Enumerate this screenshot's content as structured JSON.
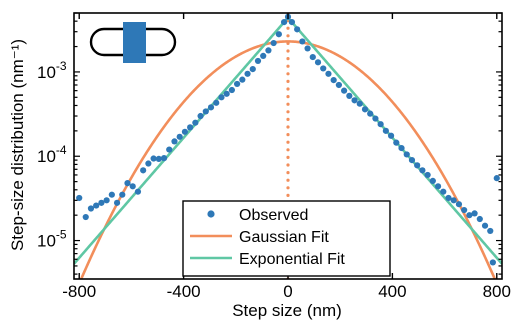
{
  "colors": {
    "observed": "#2e78b7",
    "gaussian": "#f28e5b",
    "exponential": "#5fc7a4",
    "axis": "#000000"
  },
  "chart_data": {
    "type": "scatter",
    "title": "",
    "xlabel": "Step size (nm)",
    "ylabel": "Step-size distribution (nm⁻¹)",
    "xlim": [
      -820,
      820
    ],
    "ylim": [
      3.5e-06,
      0.005
    ],
    "yscale": "log",
    "grid": false,
    "legend_position": "bottom-center",
    "x_ticks": [
      -800,
      -400,
      0,
      400,
      800
    ],
    "x_tick_labels": [
      "-800",
      "-400",
      "0",
      "400",
      "800"
    ],
    "y_ticks": [
      1e-05,
      0.0001,
      0.001
    ],
    "y_tick_labels": [
      {
        "base": "10",
        "exp": "-5"
      },
      {
        "base": "10",
        "exp": "-4"
      },
      {
        "base": "10",
        "exp": "-3"
      }
    ],
    "inset_icon": "capsule-with-band-icon",
    "series": [
      {
        "name": "Observed",
        "kind": "scatter",
        "color": "#2e78b7",
        "points": [
          [
            -800,
            3.2e-05
          ],
          [
            -775,
            1.9e-05
          ],
          [
            -755,
            2.4e-05
          ],
          [
            -735,
            2.6e-05
          ],
          [
            -715,
            2.8e-05
          ],
          [
            -695,
            3e-05
          ],
          [
            -675,
            3.5e-05
          ],
          [
            -655,
            2.8e-05
          ],
          [
            -635,
            3.5e-05
          ],
          [
            -615,
            4.8e-05
          ],
          [
            -595,
            4.4e-05
          ],
          [
            -575,
            3.8e-05
          ],
          [
            -555,
            6.8e-05
          ],
          [
            -535,
            8.2e-05
          ],
          [
            -515,
            9.4e-05
          ],
          [
            -495,
            9.3e-05
          ],
          [
            -475,
            9.5e-05
          ],
          [
            -455,
            0.00012
          ],
          [
            -435,
            0.00015
          ],
          [
            -415,
            0.00017
          ],
          [
            -395,
            0.000195
          ],
          [
            -375,
            0.00022
          ],
          [
            -355,
            0.00025
          ],
          [
            -335,
            0.0003
          ],
          [
            -315,
            0.00034
          ],
          [
            -295,
            0.00038
          ],
          [
            -275,
            0.00043
          ],
          [
            -255,
            0.0005
          ],
          [
            -235,
            0.00055
          ],
          [
            -215,
            0.00061
          ],
          [
            -195,
            0.00072
          ],
          [
            -175,
            0.00081
          ],
          [
            -155,
            0.00095
          ],
          [
            -135,
            0.00108
          ],
          [
            -115,
            0.00135
          ],
          [
            -95,
            0.00155
          ],
          [
            -75,
            0.0018
          ],
          [
            -55,
            0.0022
          ],
          [
            -35,
            0.0028
          ],
          [
            -15,
            0.0039
          ],
          [
            0,
            0.0045
          ],
          [
            15,
            0.0039
          ],
          [
            35,
            0.0032
          ],
          [
            55,
            0.0023
          ],
          [
            75,
            0.0019
          ],
          [
            95,
            0.0015
          ],
          [
            115,
            0.0013
          ],
          [
            135,
            0.0011
          ],
          [
            155,
            0.00095
          ],
          [
            175,
            0.0008
          ],
          [
            195,
            0.0007
          ],
          [
            215,
            0.0006
          ],
          [
            235,
            0.00052
          ],
          [
            255,
            0.00046
          ],
          [
            275,
            0.00042
          ],
          [
            295,
            0.00036
          ],
          [
            315,
            0.00032
          ],
          [
            335,
            0.00028
          ],
          [
            355,
            0.00024
          ],
          [
            375,
            0.0002
          ],
          [
            395,
            0.000175
          ],
          [
            415,
            0.000145
          ],
          [
            435,
            0.000125
          ],
          [
            455,
            0.000105
          ],
          [
            475,
            9e-05
          ],
          [
            495,
            7.8e-05
          ],
          [
            515,
            6.8e-05
          ],
          [
            535,
            6e-05
          ],
          [
            555,
            5.1e-05
          ],
          [
            575,
            4.4e-05
          ],
          [
            595,
            3.8e-05
          ],
          [
            615,
            3.2e-05
          ],
          [
            635,
            3e-05
          ],
          [
            655,
            2.7e-05
          ],
          [
            675,
            2.3e-05
          ],
          [
            695,
            2e-05
          ],
          [
            715,
            2.1e-05
          ],
          [
            735,
            1.8e-05
          ],
          [
            755,
            1.5e-05
          ],
          [
            775,
            1.3e-05
          ],
          [
            785,
            5.5e-06
          ],
          [
            800,
            5.5e-05
          ]
        ]
      },
      {
        "name": "Gaussian Fit",
        "kind": "gaussian",
        "color": "#f28e5b",
        "peak": 0.0023,
        "sigma": 220
      },
      {
        "name": "Exponential Fit",
        "kind": "laplace",
        "color": "#5fc7a4",
        "peak": 0.0044,
        "scale": 122
      }
    ],
    "annotations": [
      {
        "kind": "vertical-dotted-line",
        "x": 0,
        "color": "#f28e5b"
      }
    ]
  }
}
